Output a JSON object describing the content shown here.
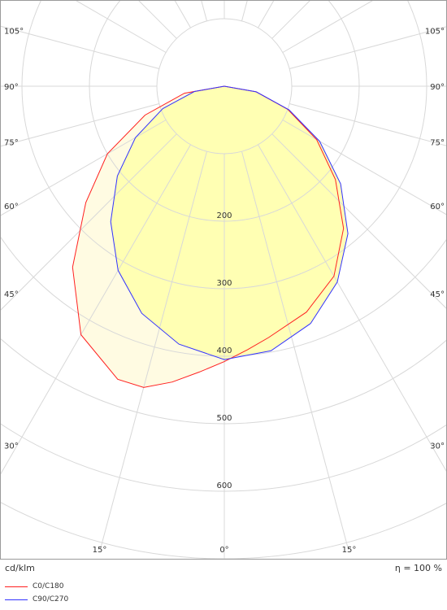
{
  "chart_data": {
    "type": "polar",
    "unit_label": "cd/klm",
    "efficiency_label": "η = 100 %",
    "radial_ticks": [
      {
        "value": 200,
        "label": "200"
      },
      {
        "value": 300,
        "label": "300"
      },
      {
        "value": 400,
        "label": "400"
      },
      {
        "value": 500,
        "label": "500"
      },
      {
        "value": 600,
        "label": "600"
      }
    ],
    "radial_max": 700,
    "angle_labels": [
      {
        "deg": 0,
        "label": "0°"
      },
      {
        "deg": 15,
        "label": "15°"
      },
      {
        "deg": 30,
        "label": "30°"
      },
      {
        "deg": 45,
        "label": "45°"
      },
      {
        "deg": 60,
        "label": "60°"
      },
      {
        "deg": 75,
        "label": "75°"
      },
      {
        "deg": 90,
        "label": "90°"
      },
      {
        "deg": 105,
        "label": "105°"
      }
    ],
    "series": [
      {
        "name": "C0/C180",
        "color": "#ff2020",
        "fill": "#fffbe0",
        "points": [
          {
            "angle": -90,
            "value": 0
          },
          {
            "angle": -80,
            "value": 60
          },
          {
            "angle": -70,
            "value": 125
          },
          {
            "angle": -60,
            "value": 200
          },
          {
            "angle": -50,
            "value": 268
          },
          {
            "angle": -40,
            "value": 350
          },
          {
            "angle": -30,
            "value": 425
          },
          {
            "angle": -20,
            "value": 462
          },
          {
            "angle": -15,
            "value": 462
          },
          {
            "angle": -10,
            "value": 445
          },
          {
            "angle": -5,
            "value": 425
          },
          {
            "angle": 0,
            "value": 408
          },
          {
            "angle": 5,
            "value": 392
          },
          {
            "angle": 10,
            "value": 378
          },
          {
            "angle": 20,
            "value": 356
          },
          {
            "angle": 30,
            "value": 325
          },
          {
            "angle": 40,
            "value": 275
          },
          {
            "angle": 50,
            "value": 215
          },
          {
            "angle": 60,
            "value": 158
          },
          {
            "angle": 70,
            "value": 100
          },
          {
            "angle": 80,
            "value": 48
          },
          {
            "angle": 90,
            "value": 0
          }
        ]
      },
      {
        "name": "C90/C270",
        "color": "#3333ff",
        "fill": "#ffffaa",
        "points": [
          {
            "angle": -90,
            "value": 0
          },
          {
            "angle": -80,
            "value": 45
          },
          {
            "angle": -70,
            "value": 97
          },
          {
            "angle": -60,
            "value": 152
          },
          {
            "angle": -50,
            "value": 207
          },
          {
            "angle": -40,
            "value": 262
          },
          {
            "angle": -30,
            "value": 315
          },
          {
            "angle": -20,
            "value": 358
          },
          {
            "angle": -10,
            "value": 388
          },
          {
            "angle": 0,
            "value": 405
          },
          {
            "angle": 10,
            "value": 398
          },
          {
            "angle": 20,
            "value": 374
          },
          {
            "angle": 30,
            "value": 335
          },
          {
            "angle": 40,
            "value": 285
          },
          {
            "angle": 50,
            "value": 225
          },
          {
            "angle": 60,
            "value": 163
          },
          {
            "angle": 70,
            "value": 102
          },
          {
            "angle": 80,
            "value": 48
          },
          {
            "angle": 90,
            "value": 0
          }
        ]
      }
    ]
  }
}
